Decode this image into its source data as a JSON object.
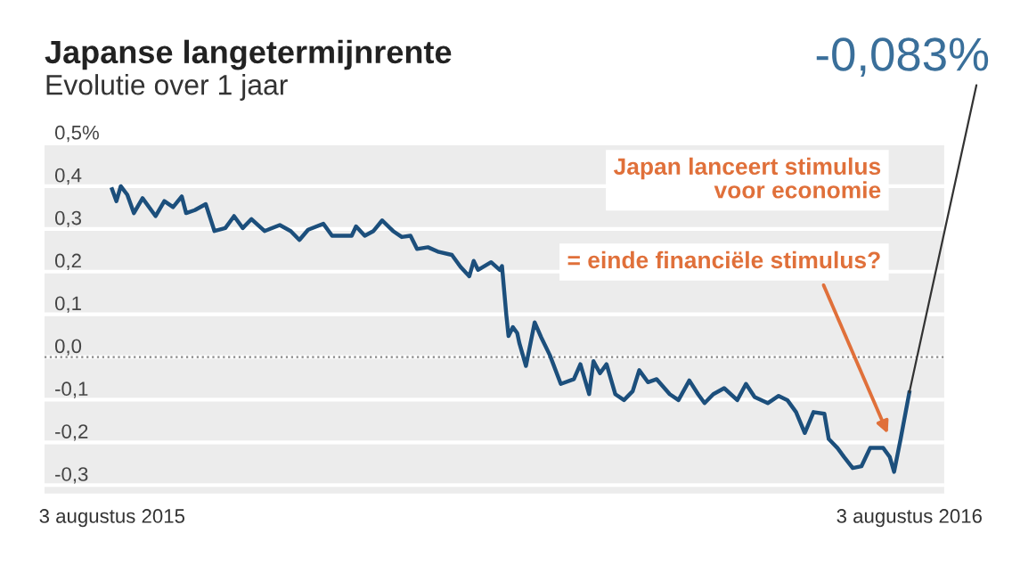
{
  "chart_data": {
    "type": "line",
    "title": "Japanse langetermijnrente",
    "subtitle": "Evolutie over 1 jaar",
    "x": [
      "2015-08-03",
      "2015-08-05",
      "2015-08-07",
      "2015-08-10",
      "2015-08-13",
      "2015-08-17",
      "2015-08-23",
      "2015-08-27",
      "2015-08-31",
      "2015-09-04",
      "2015-09-06",
      "2015-09-10",
      "2015-09-15",
      "2015-09-19",
      "2015-09-24",
      "2015-09-28",
      "2015-10-02",
      "2015-10-06",
      "2015-10-12",
      "2015-10-19",
      "2015-10-24",
      "2015-10-28",
      "2015-11-01",
      "2015-11-08",
      "2015-11-12",
      "2015-11-21",
      "2015-11-23",
      "2015-11-27",
      "2015-12-01",
      "2015-12-05",
      "2015-12-10",
      "2015-12-14",
      "2015-12-18",
      "2015-12-21",
      "2015-12-26",
      "2015-12-31",
      "2016-01-06",
      "2016-01-10",
      "2016-01-14",
      "2016-01-16",
      "2016-01-18",
      "2016-01-24",
      "2016-01-28",
      "2016-01-29",
      "2016-01-31",
      "2016-02-01",
      "2016-02-03",
      "2016-02-05",
      "2016-02-06",
      "2016-02-09",
      "2016-02-13",
      "2016-02-16",
      "2016-02-20",
      "2016-02-25",
      "2016-03-02",
      "2016-03-05",
      "2016-03-09",
      "2016-03-11",
      "2016-03-14",
      "2016-03-17",
      "2016-03-21",
      "2016-03-25",
      "2016-03-29",
      "2016-04-01",
      "2016-04-05",
      "2016-04-09",
      "2016-04-15",
      "2016-04-19",
      "2016-04-24",
      "2016-04-28",
      "2016-05-01",
      "2016-05-05",
      "2016-05-10",
      "2016-05-16",
      "2016-05-20",
      "2016-05-24",
      "2016-05-30",
      "2016-06-04",
      "2016-06-08",
      "2016-06-12",
      "2016-06-16",
      "2016-06-20",
      "2016-06-25",
      "2016-06-27",
      "2016-07-01",
      "2016-07-04",
      "2016-07-08",
      "2016-07-12",
      "2016-07-16",
      "2016-07-22",
      "2016-07-25",
      "2016-07-27",
      "2016-07-30",
      "2016-08-03"
    ],
    "series": [
      {
        "color": "#1c4f7c",
        "values": [
          0.393,
          0.365,
          0.4,
          0.38,
          0.337,
          0.372,
          0.33,
          0.365,
          0.351,
          0.376,
          0.337,
          0.344,
          0.358,
          0.295,
          0.302,
          0.33,
          0.302,
          0.323,
          0.295,
          0.309,
          0.295,
          0.274,
          0.298,
          0.312,
          0.284,
          0.284,
          0.306,
          0.284,
          0.295,
          0.32,
          0.295,
          0.281,
          0.284,
          0.253,
          0.257,
          0.246,
          0.239,
          0.211,
          0.189,
          0.225,
          0.204,
          0.222,
          0.204,
          0.213,
          0.098,
          0.049,
          0.07,
          0.056,
          0.032,
          -0.021,
          0.081,
          0.046,
          0.004,
          -0.063,
          -0.052,
          -0.017,
          -0.087,
          -0.01,
          -0.038,
          -0.017,
          -0.087,
          -0.101,
          -0.08,
          -0.031,
          -0.059,
          -0.052,
          -0.087,
          -0.101,
          -0.055,
          -0.087,
          -0.108,
          -0.087,
          -0.073,
          -0.101,
          -0.063,
          -0.094,
          -0.108,
          -0.091,
          -0.101,
          -0.129,
          -0.178,
          -0.129,
          -0.133,
          -0.192,
          -0.213,
          -0.234,
          -0.26,
          -0.256,
          -0.213,
          -0.213,
          -0.234,
          -0.269,
          -0.192,
          -0.083
        ]
      }
    ],
    "xlim": [
      "2015-07-03",
      "2016-08-19"
    ],
    "xticks": [
      {
        "value": "2015-08-03",
        "label": "3 augustus 2015"
      },
      {
        "value": "2016-08-03",
        "label": "3 augustus 2016"
      }
    ],
    "ylim": [
      -0.32,
      0.5
    ],
    "yticks": [
      {
        "value": 0.5,
        "label": "0,5%"
      },
      {
        "value": 0.4,
        "label": "0,4"
      },
      {
        "value": 0.3,
        "label": "0,3"
      },
      {
        "value": 0.2,
        "label": "0,2"
      },
      {
        "value": 0.1,
        "label": "0,1"
      },
      {
        "value": 0.0,
        "label": "0,0"
      },
      {
        "value": -0.1,
        "label": "-0,1"
      },
      {
        "value": -0.2,
        "label": "-0,2"
      },
      {
        "value": -0.3,
        "label": "-0,3"
      }
    ],
    "grid": "y",
    "marker": "none",
    "line_style": "solid",
    "ref_lines": [
      {
        "axis": "y",
        "value": 0.0,
        "color": "#888888",
        "line_style": "dotted"
      }
    ],
    "annotations": [
      {
        "text": "-0,083%",
        "x": "2016-08-03",
        "y": -0.083
      },
      "Japan lanceert stimulus\nvoor economie",
      {
        "text": "= einde financiële stimulus?",
        "x": "2016-07-25",
        "y": -0.19
      }
    ]
  }
}
